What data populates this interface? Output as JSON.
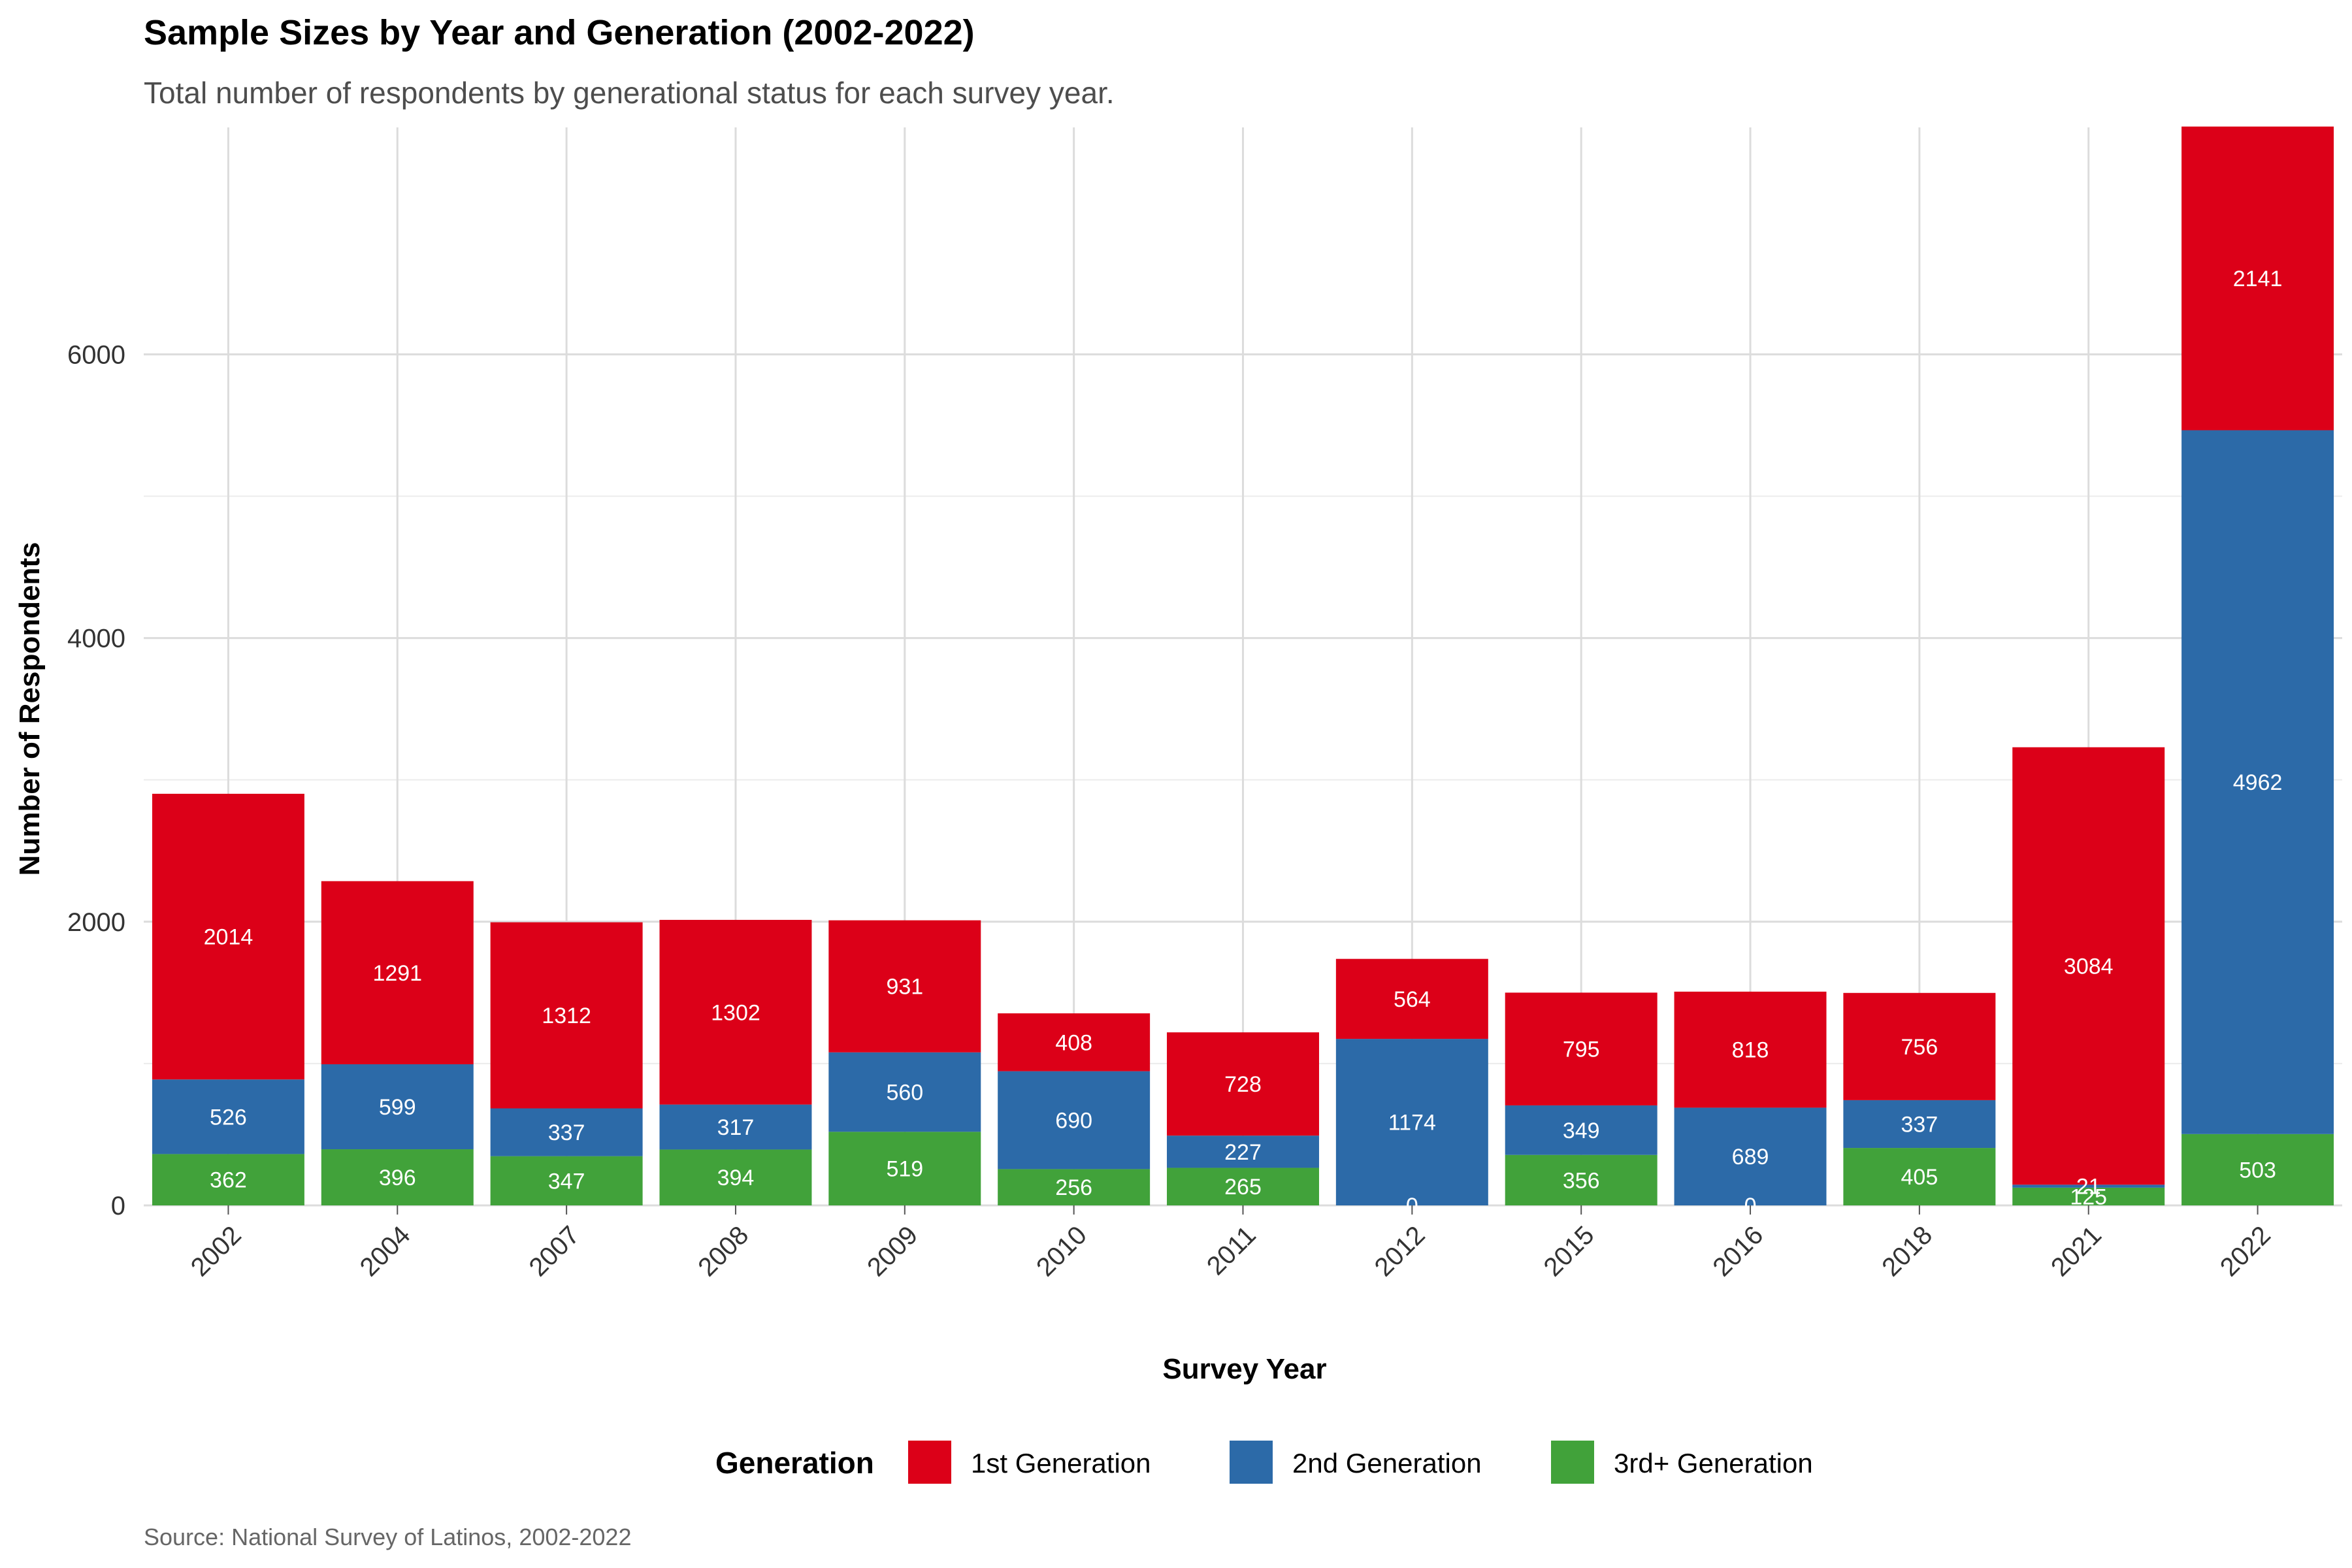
{
  "chart_data": {
    "type": "bar",
    "stacked": true,
    "title": "Sample Sizes by Year and Generation (2002-2022)",
    "subtitle": "Total number of respondents by generational status for each survey year.",
    "xlabel": "Survey Year",
    "ylabel": "Number of Respondents",
    "caption": "Source: National Survey of Latinos, 2002-2022",
    "categories": [
      "2002",
      "2004",
      "2007",
      "2008",
      "2009",
      "2010",
      "2011",
      "2012",
      "2015",
      "2016",
      "2018",
      "2021",
      "2022"
    ],
    "series": [
      {
        "name": "3rd+ Generation",
        "color": "#41A23A",
        "values": [
          362,
          396,
          347,
          394,
          519,
          256,
          265,
          0,
          356,
          0,
          405,
          125,
          503
        ]
      },
      {
        "name": "2nd Generation",
        "color": "#2C6AA8",
        "values": [
          526,
          599,
          337,
          317,
          560,
          690,
          227,
          1174,
          349,
          689,
          337,
          21,
          4962
        ]
      },
      {
        "name": "1st Generation",
        "color": "#DC0018",
        "values": [
          2014,
          1291,
          1312,
          1302,
          931,
          408,
          728,
          564,
          795,
          818,
          756,
          3084,
          2141
        ]
      }
    ],
    "ylim": [
      0,
      7600
    ],
    "yticks": [
      0,
      2000,
      4000,
      6000
    ],
    "grid": true,
    "legend": {
      "title": "Generation",
      "placement": "bottom",
      "order": [
        "1st Generation",
        "2nd Generation",
        "3rd+ Generation"
      ]
    }
  }
}
